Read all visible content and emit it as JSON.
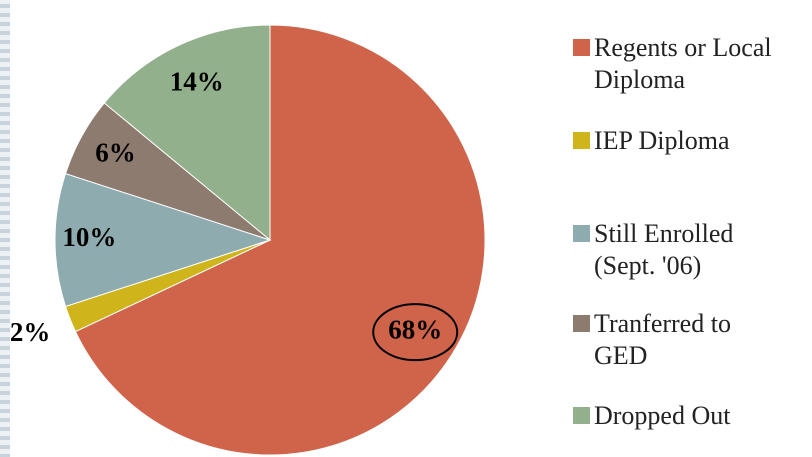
{
  "chart_data": {
    "type": "pie",
    "categories": [
      "Regents or Local Diploma",
      "IEP Diploma",
      "Still Enrolled (Sept. '06)",
      "Tranferred to GED",
      "Dropped Out"
    ],
    "values": [
      68,
      2,
      10,
      6,
      14
    ],
    "value_labels": [
      "68%",
      "2%",
      "10%",
      "6%",
      "14%"
    ],
    "colors": [
      "#d0644a",
      "#cfb51b",
      "#8eacaf",
      "#8d7b70",
      "#93b08c"
    ],
    "legend": "right"
  }
}
